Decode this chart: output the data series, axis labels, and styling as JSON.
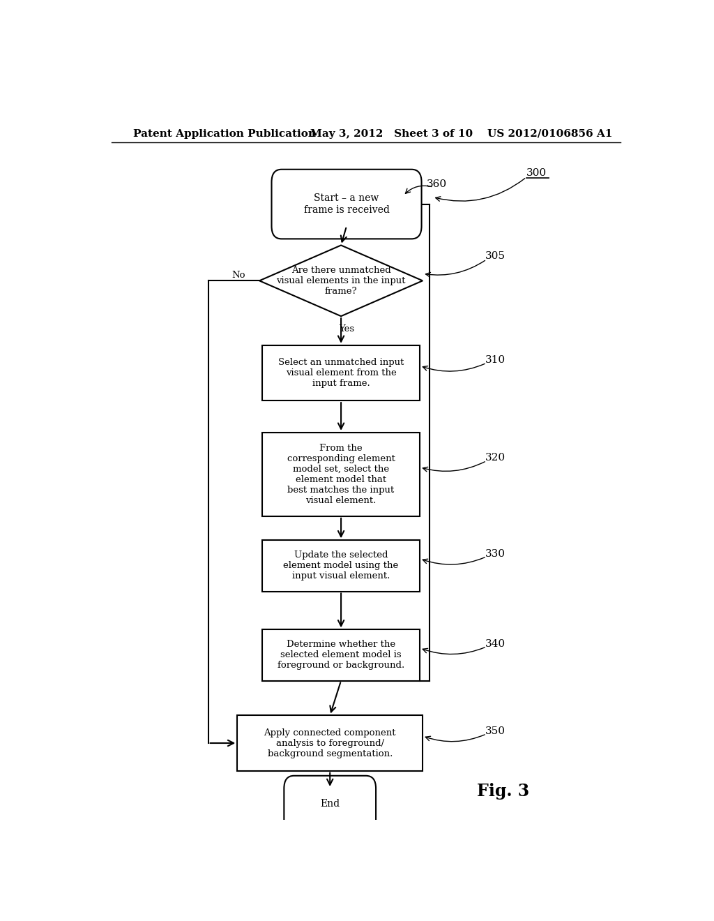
{
  "bg_color": "#ffffff",
  "header_left": "Patent Application Publication",
  "header_mid": "May 3, 2012   Sheet 3 of 10",
  "header_right": "US 2012/0106856 A1",
  "fig_label": "Fig. 3",
  "start_text": "Start – a new\nframe is received",
  "diamond_text": "Are there unmatched\nvisual elements in the input\nframe?",
  "box310_text": "Select an unmatched input\nvisual element from the\ninput frame.",
  "box320_text": "From the\ncorresponding element\nmodel set, select the\nelement model that\nbest matches the input\nvisual element.",
  "box330_text": "Update the selected\nelement model using the\ninput visual element.",
  "box340_text": "Determine whether the\nselected element model is\nforeground or background.",
  "box350_text": "Apply connected component\nanalysis to foreground/\nbackground segmentation.",
  "end_text": "End",
  "label_360": "360",
  "label_300": "300",
  "label_305": "305",
  "label_310": "310",
  "label_320": "320",
  "label_330": "330",
  "label_340": "340",
  "label_350": "350",
  "label_yes": "Yes",
  "label_no": "No"
}
